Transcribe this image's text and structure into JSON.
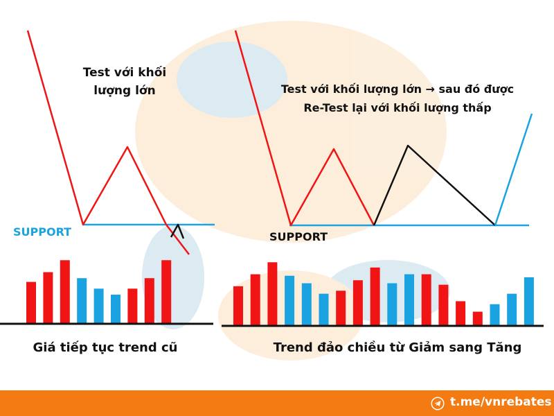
{
  "left_panel": {
    "annotation_line1": "Test với khối",
    "annotation_line2": "lượng lớn",
    "support_label": "SUPPORT",
    "caption": "Giá tiếp tục trend cũ",
    "volume_bars": [
      {
        "color": "red",
        "level": 0.55
      },
      {
        "color": "red",
        "level": 0.68
      },
      {
        "color": "red",
        "level": 0.84
      },
      {
        "color": "blue",
        "level": 0.6
      },
      {
        "color": "blue",
        "level": 0.46
      },
      {
        "color": "blue",
        "level": 0.38
      },
      {
        "color": "red",
        "level": 0.46
      },
      {
        "color": "red",
        "level": 0.6
      },
      {
        "color": "red",
        "level": 0.84
      }
    ]
  },
  "right_panel": {
    "annotation_line1": "Test với khối lượng lớn → sau đó được",
    "annotation_line2": "Re-Test lại với khối lượng thấp",
    "support_label": "SUPPORT",
    "caption": "Trend đảo chiều từ Giảm sang Tăng",
    "volume_bars": [
      {
        "color": "red",
        "level": 0.52
      },
      {
        "color": "red",
        "level": 0.68
      },
      {
        "color": "red",
        "level": 0.84
      },
      {
        "color": "blue",
        "level": 0.66
      },
      {
        "color": "blue",
        "level": 0.56
      },
      {
        "color": "blue",
        "level": 0.42
      },
      {
        "color": "red",
        "level": 0.46
      },
      {
        "color": "red",
        "level": 0.6
      },
      {
        "color": "red",
        "level": 0.77
      },
      {
        "color": "blue",
        "level": 0.56
      },
      {
        "color": "blue",
        "level": 0.68
      },
      {
        "color": "red",
        "level": 0.68
      },
      {
        "color": "red",
        "level": 0.54
      },
      {
        "color": "red",
        "level": 0.32
      },
      {
        "color": "red",
        "level": 0.18
      },
      {
        "color": "blue",
        "level": 0.28
      },
      {
        "color": "blue",
        "level": 0.42
      },
      {
        "color": "blue",
        "level": 0.64
      }
    ]
  },
  "colors": {
    "red": "#f01414",
    "blue": "#1aa3e0",
    "black": "#111111",
    "footer": "#f47a12"
  },
  "footer": {
    "link": "t.me/vnrebates",
    "icon": "telegram-icon"
  }
}
